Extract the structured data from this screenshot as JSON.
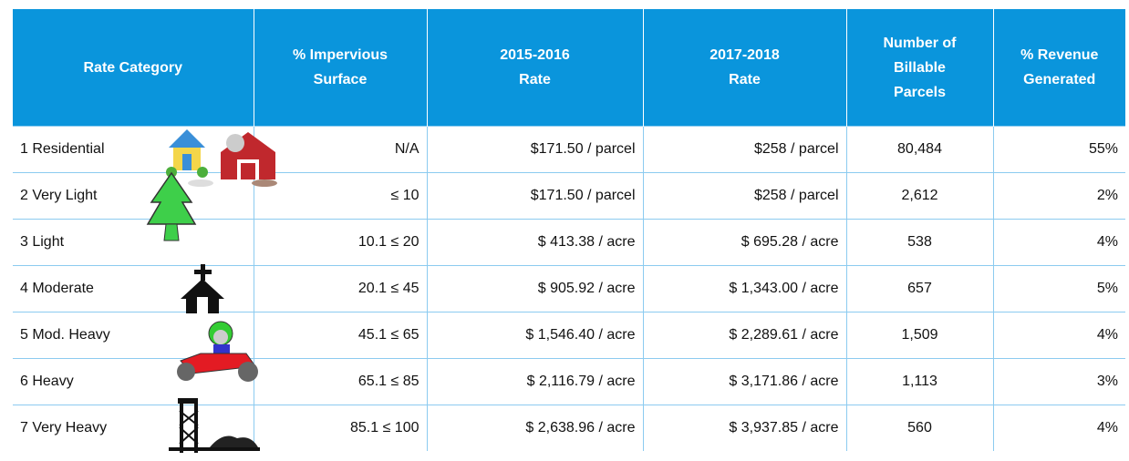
{
  "table": {
    "header": [
      "Rate Category",
      "% Impervious\nSurface",
      "2015-2016\nRate",
      "2017-2018\nRate",
      "Number of\nBillable\nParcels",
      "% Revenue\nGenerated"
    ],
    "rows": [
      [
        "1 Residential",
        "N/A",
        "$171.50 / parcel",
        "$258 / parcel",
        "80,484",
        "55%"
      ],
      [
        "2 Very Light",
        "≤ 10",
        "$171.50 / parcel",
        "$258 / parcel",
        "2,612",
        "2%"
      ],
      [
        "3 Light",
        "10.1 ≤ 20",
        "$ 413.38 / acre",
        "$ 695.28 / acre",
        "538",
        "4%"
      ],
      [
        "4 Moderate",
        "20.1 ≤ 45",
        "$ 905.92 / acre",
        "$ 1,343.00 / acre",
        "657",
        "5%"
      ],
      [
        "5 Mod. Heavy",
        "45.1 ≤ 65",
        "$ 1,546.40 / acre",
        "$ 2,289.61 / acre",
        "1,509",
        "4%"
      ],
      [
        "6 Heavy",
        "65.1 ≤ 85",
        "$ 2,116.79 / acre",
        "$ 3,171.86 / acre",
        "1,113",
        "3%"
      ],
      [
        "7 Very Heavy",
        "85.1 ≤ 100",
        "$ 2,638.96 / acre",
        "$ 3,937.85 / acre",
        "560",
        "4%"
      ]
    ]
  }
}
